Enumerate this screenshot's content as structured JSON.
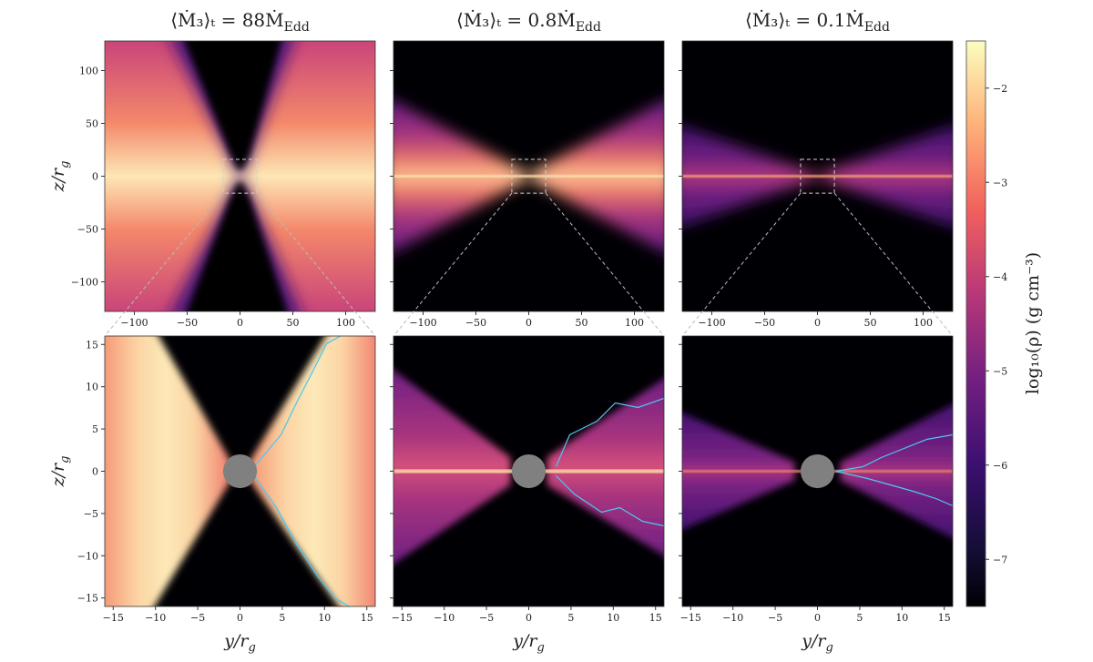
{
  "chart_data": {
    "type": "heatmap",
    "colormap": "magma",
    "panels": [
      {
        "row": "top",
        "column": 1,
        "title": "⟨Ṁ₃⟩ₜ = 88Ṁ",
        "title_subscript": "Edd",
        "xlim": [
          -128,
          128
        ],
        "ylim": [
          -128,
          128
        ],
        "xticks": [
          -100,
          -50,
          0,
          50,
          100
        ],
        "yticks": [
          -100,
          -50,
          0,
          50,
          100
        ],
        "ylabel": "z/r",
        "ylabel_subscript": "g",
        "zoom_box": [
          -16,
          16
        ]
      },
      {
        "row": "top",
        "column": 2,
        "title": "⟨Ṁ₃⟩ₜ = 0.8Ṁ",
        "title_subscript": "Edd",
        "xlim": [
          -128,
          128
        ],
        "ylim": [
          -128,
          128
        ],
        "xticks": [
          -100,
          -50,
          0,
          50,
          100
        ],
        "yticks": [
          -100,
          -50,
          0,
          50,
          100
        ],
        "zoom_box": [
          -16,
          16
        ]
      },
      {
        "row": "top",
        "column": 3,
        "title": "⟨Ṁ₃⟩ₜ = 0.1Ṁ",
        "title_subscript": "Edd",
        "xlim": [
          -128,
          128
        ],
        "ylim": [
          -128,
          128
        ],
        "xticks": [
          -100,
          -50,
          0,
          50,
          100
        ],
        "yticks": [
          -100,
          -50,
          0,
          50,
          100
        ],
        "zoom_box": [
          -16,
          16
        ]
      },
      {
        "row": "bottom",
        "column": 1,
        "xlim": [
          -16,
          16
        ],
        "ylim": [
          -16,
          16
        ],
        "xticks": [
          -15,
          -10,
          -5,
          0,
          5,
          10,
          15
        ],
        "yticks": [
          -15,
          -10,
          -5,
          0,
          5,
          10,
          15
        ],
        "xlabel": "y/r",
        "xlabel_subscript": "g",
        "ylabel": "z/r",
        "ylabel_subscript": "g"
      },
      {
        "row": "bottom",
        "column": 2,
        "xlim": [
          -16,
          16
        ],
        "ylim": [
          -16,
          16
        ],
        "xticks": [
          -15,
          -10,
          -5,
          0,
          5,
          10,
          15
        ],
        "yticks": [
          -15,
          -10,
          -5,
          0,
          5,
          10,
          15
        ],
        "xlabel": "y/r",
        "xlabel_subscript": "g"
      },
      {
        "row": "bottom",
        "column": 3,
        "xlim": [
          -16,
          16
        ],
        "ylim": [
          -16,
          16
        ],
        "xticks": [
          -15,
          -10,
          -5,
          0,
          5,
          10,
          15
        ],
        "yticks": [
          -15,
          -10,
          -5,
          0,
          5,
          10,
          15
        ],
        "xlabel": "y/r",
        "xlabel_subscript": "g"
      }
    ],
    "colorbar": {
      "label": "log₁₀(ρ) (g cm⁻³)",
      "range": [
        -7.5,
        -1.5
      ],
      "ticks": [
        -2,
        -3,
        -4,
        -5,
        -6,
        -7
      ]
    },
    "colors": {
      "black_hole": "#808080",
      "contour": "#4fc8f0",
      "zoom_box": "#d0d0d0"
    }
  }
}
